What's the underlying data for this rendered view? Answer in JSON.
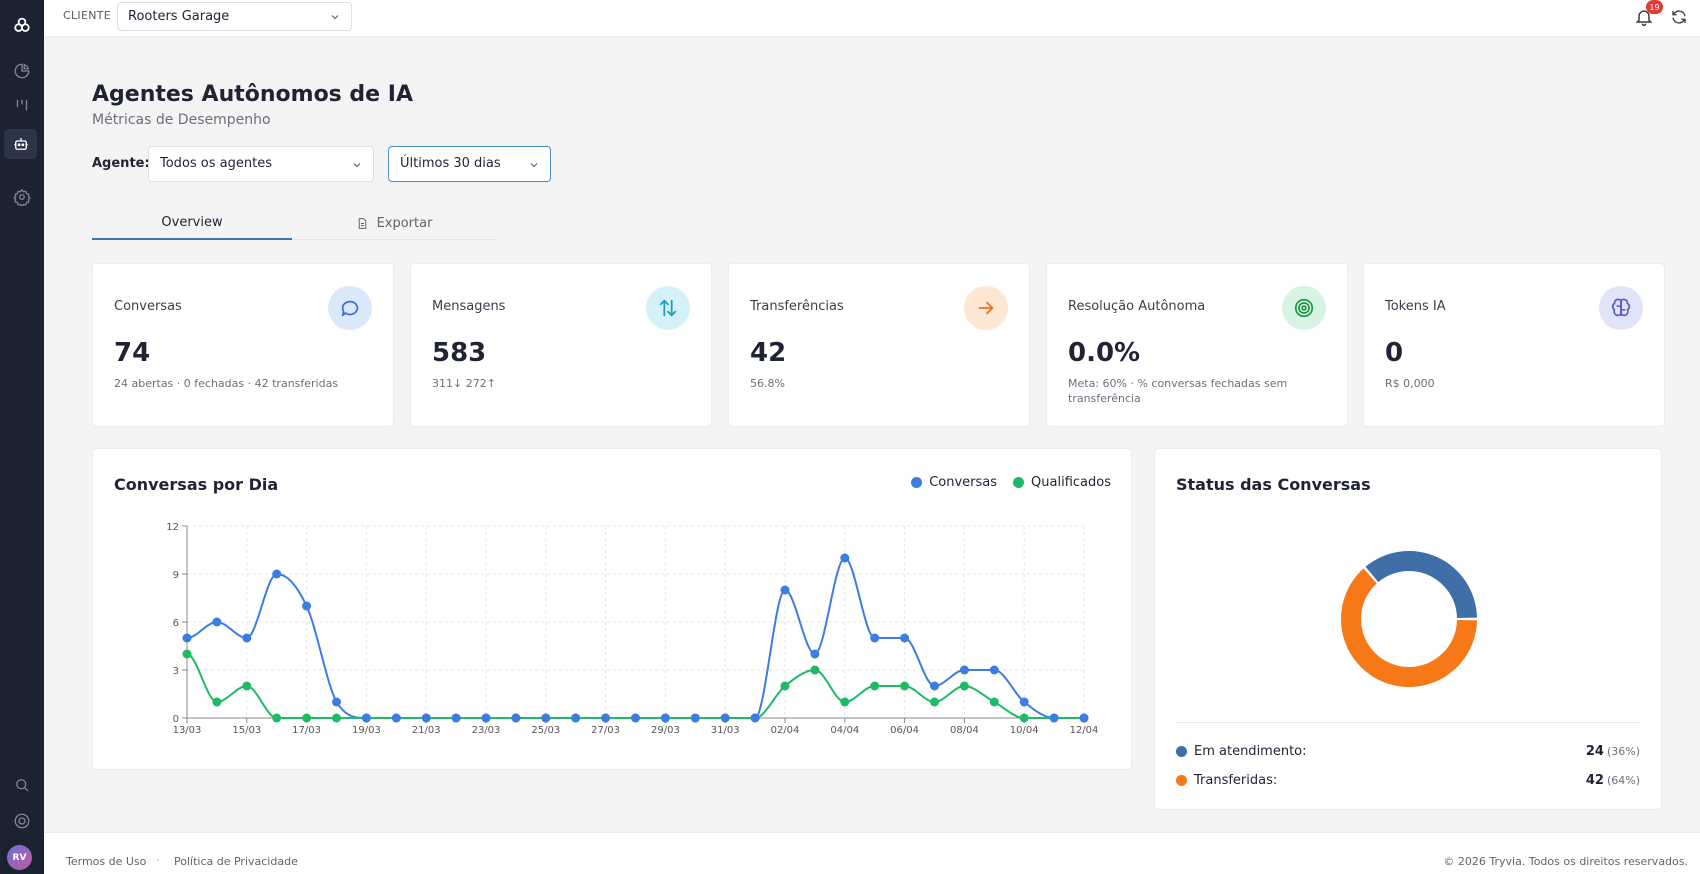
{
  "topbar": {
    "client_label": "CLIENTE",
    "client_value": "Rooters Garage",
    "notification_count": "19"
  },
  "header": {
    "title": "Agentes Autônomos de IA",
    "subtitle": "Métricas de Desempenho"
  },
  "filters": {
    "agent_label": "Agente:",
    "agent_value": "Todos os agentes",
    "period_value": "Últimos 30 dias"
  },
  "tabs": [
    {
      "label": "Overview"
    },
    {
      "label": "Exportar"
    }
  ],
  "metrics": [
    {
      "label": "Conversas",
      "value": "74",
      "sub": "24 abertas · 0 fechadas · 42 transferidas",
      "icon": "chat-bubble-icon",
      "icon_bg": "#dbe8fb",
      "icon_color": "#3b6fd6"
    },
    {
      "label": "Mensagens",
      "value": "583",
      "sub": "311↓ 272↑",
      "icon": "arrows-up-down-icon",
      "icon_bg": "#d3f1f6",
      "icon_color": "#1a9fb5"
    },
    {
      "label": "Transferências",
      "value": "42",
      "sub": "56.8%",
      "icon": "arrow-right-icon",
      "icon_bg": "#fde6d2",
      "icon_color": "#e8741c"
    },
    {
      "label": "Resolução Autônoma",
      "value": "0.0%",
      "sub": "Meta: 60% · % conversas fechadas sem transferência",
      "icon": "target-icon",
      "icon_bg": "#d7f3e1",
      "icon_color": "#1f9a4a"
    },
    {
      "label": "Tokens IA",
      "value": "0",
      "sub": "R$ 0,000",
      "icon": "brain-icon",
      "icon_bg": "#e1e3f8",
      "icon_color": "#5a5fc9"
    }
  ],
  "chart_data": {
    "type": "line",
    "title": "Conversas por Dia",
    "x": [
      "13/03",
      "14/03",
      "15/03",
      "16/03",
      "17/03",
      "18/03",
      "19/03",
      "20/03",
      "21/03",
      "22/03",
      "23/03",
      "24/03",
      "25/03",
      "26/03",
      "27/03",
      "28/03",
      "29/03",
      "30/03",
      "31/03",
      "01/04",
      "02/04",
      "03/04",
      "04/04",
      "05/04",
      "06/04",
      "07/04",
      "08/04",
      "09/04",
      "10/04",
      "11/04",
      "12/04"
    ],
    "x_tick_labels": [
      "13/03",
      "15/03",
      "17/03",
      "19/03",
      "21/03",
      "23/03",
      "25/03",
      "27/03",
      "29/03",
      "31/03",
      "02/04",
      "04/04",
      "06/04",
      "08/04",
      "10/04",
      "12/04"
    ],
    "y_ticks": [
      0,
      3,
      6,
      9,
      12
    ],
    "ylim": [
      0,
      12
    ],
    "grid": true,
    "legend": "top-right",
    "series": [
      {
        "name": "Conversas",
        "color": "#3b7de0",
        "values": [
          5,
          6,
          5,
          9,
          7,
          1,
          0,
          0,
          0,
          0,
          0,
          0,
          0,
          0,
          0,
          0,
          0,
          0,
          0,
          0,
          8,
          4,
          10,
          5,
          5,
          2,
          3,
          3,
          1,
          0,
          0
        ]
      },
      {
        "name": "Qualificados",
        "color": "#1fba66",
        "values": [
          4,
          1,
          2,
          0,
          0,
          0,
          0,
          0,
          0,
          0,
          0,
          0,
          0,
          0,
          0,
          0,
          0,
          0,
          0,
          0,
          2,
          3,
          1,
          2,
          2,
          1,
          2,
          1,
          0,
          0,
          0
        ]
      }
    ]
  },
  "status": {
    "title": "Status das Conversas",
    "items": [
      {
        "label": "Em atendimento:",
        "value": "24",
        "pct": "(36%)",
        "count": 24,
        "color": "#3f6ea8"
      },
      {
        "label": "Transferidas:",
        "value": "42",
        "pct": "(64%)",
        "count": 42,
        "color": "#f77817"
      }
    ]
  },
  "footer": {
    "terms": "Termos de Uso",
    "separator": "·",
    "privacy": "Política de Privacidade",
    "copyright": "© 2026 Tryvia. Todos os direitos reservados."
  }
}
